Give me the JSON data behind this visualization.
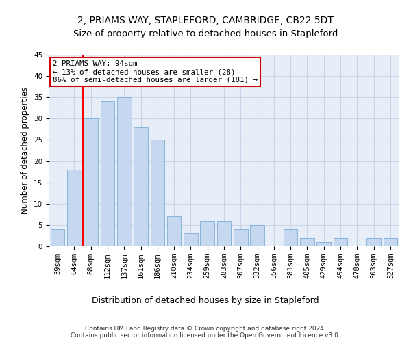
{
  "title": "2, PRIAMS WAY, STAPLEFORD, CAMBRIDGE, CB22 5DT",
  "subtitle": "Size of property relative to detached houses in Stapleford",
  "xlabel_bottom": "Distribution of detached houses by size in Stapleford",
  "ylabel": "Number of detached properties",
  "categories": [
    "39sqm",
    "64sqm",
    "88sqm",
    "112sqm",
    "137sqm",
    "161sqm",
    "186sqm",
    "210sqm",
    "234sqm",
    "259sqm",
    "283sqm",
    "307sqm",
    "332sqm",
    "356sqm",
    "381sqm",
    "405sqm",
    "429sqm",
    "454sqm",
    "478sqm",
    "503sqm",
    "527sqm"
  ],
  "values": [
    4,
    18,
    30,
    34,
    35,
    28,
    25,
    7,
    3,
    6,
    6,
    4,
    5,
    0,
    4,
    2,
    1,
    2,
    0,
    2,
    2
  ],
  "bar_color": "#c5d8f0",
  "bar_edge_color": "#7aaed6",
  "grid_color": "#c8d4e8",
  "background_color": "#e8eef8",
  "red_line_index": 2,
  "annotation_text": "2 PRIAMS WAY: 94sqm\n← 13% of detached houses are smaller (28)\n86% of semi-detached houses are larger (181) →",
  "annotation_box_color": "#ffffff",
  "annotation_edge_color": "#cc0000",
  "ylim": [
    0,
    45
  ],
  "yticks": [
    0,
    5,
    10,
    15,
    20,
    25,
    30,
    35,
    40,
    45
  ],
  "footnote": "Contains HM Land Registry data © Crown copyright and database right 2024.\nContains public sector information licensed under the Open Government Licence v3.0.",
  "title_fontsize": 10,
  "subtitle_fontsize": 9.5,
  "tick_fontsize": 7.5,
  "ylabel_fontsize": 8.5,
  "xlabel_fontsize": 9
}
